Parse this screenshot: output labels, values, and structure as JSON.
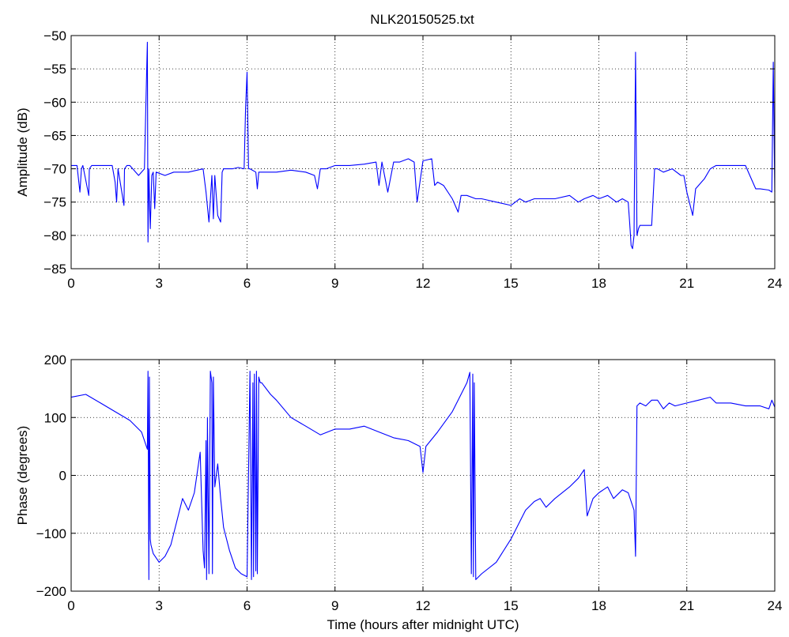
{
  "figure": {
    "title": "NLK20150525.txt"
  },
  "chart_data": [
    {
      "type": "line",
      "title": "NLK20150525.txt",
      "xlabel": "",
      "ylabel": "Amplitude (dB)",
      "xlim": [
        0,
        24
      ],
      "ylim": [
        -85,
        -50
      ],
      "xticks": [
        0,
        3,
        6,
        9,
        12,
        15,
        18,
        21,
        24
      ],
      "xtick_labels": [
        "0",
        "3",
        "6",
        "9",
        "12",
        "15",
        "18",
        "21",
        "24"
      ],
      "yticks": [
        -85,
        -80,
        -75,
        -70,
        -65,
        -60,
        -55,
        -50
      ],
      "ytick_labels": [
        "−85",
        "−80",
        "−75",
        "−70",
        "−65",
        "−60",
        "−55",
        "−50"
      ],
      "grid": true,
      "series": [
        {
          "color": "#0000ff",
          "x": [
            0,
            0.2,
            0.3,
            0.35,
            0.4,
            0.6,
            0.62,
            0.7,
            1.0,
            1.4,
            1.5,
            1.55,
            1.6,
            1.8,
            1.82,
            1.9,
            2.0,
            2.3,
            2.5,
            2.55,
            2.6,
            2.62,
            2.65,
            2.68,
            2.7,
            2.75,
            2.8,
            2.85,
            2.9,
            3.2,
            3.5,
            4.0,
            4.5,
            4.6,
            4.7,
            4.8,
            4.85,
            4.9,
            5.0,
            5.1,
            5.15,
            5.2,
            5.3,
            5.5,
            5.7,
            5.9,
            5.95,
            6.0,
            6.05,
            6.1,
            6.3,
            6.35,
            6.4,
            6.5,
            7.0,
            7.5,
            8.0,
            8.3,
            8.4,
            8.5,
            8.7,
            9.0,
            9.5,
            10.0,
            10.4,
            10.5,
            10.6,
            10.8,
            11.0,
            11.2,
            11.5,
            11.7,
            11.8,
            12.0,
            12.3,
            12.4,
            12.5,
            12.7,
            13.0,
            13.2,
            13.3,
            13.5,
            13.8,
            14.0,
            14.5,
            15.0,
            15.3,
            15.5,
            15.8,
            16.0,
            16.5,
            17.0,
            17.3,
            17.5,
            17.8,
            18.0,
            18.3,
            18.6,
            18.8,
            19.0,
            19.05,
            19.1,
            19.15,
            19.2,
            19.25,
            19.3,
            19.35,
            19.4,
            19.6,
            19.8,
            19.9,
            20.0,
            20.2,
            20.5,
            20.8,
            20.9,
            21.0,
            21.2,
            21.3,
            21.5,
            21.6,
            21.8,
            22.0,
            22.5,
            23.0,
            23.3,
            23.35,
            23.5,
            23.8,
            23.9,
            23.95,
            24.0
          ],
          "values": [
            -69.5,
            -69.5,
            -73.5,
            -70,
            -69.5,
            -74,
            -70,
            -69.5,
            -69.5,
            -69.5,
            -72,
            -75,
            -70,
            -75.5,
            -70,
            -69.5,
            -69.5,
            -71,
            -70,
            -60,
            -51,
            -81,
            -70,
            -76,
            -79,
            -71,
            -70.5,
            -76,
            -70.5,
            -71,
            -70.5,
            -70.5,
            -70,
            -73.5,
            -78,
            -71,
            -77.5,
            -71,
            -77,
            -78,
            -70.5,
            -70,
            -70,
            -70,
            -69.8,
            -70,
            -61,
            -55.5,
            -70,
            -70,
            -70.5,
            -73,
            -70.5,
            -70.5,
            -70.5,
            -70.2,
            -70.5,
            -71,
            -73,
            -70,
            -70,
            -69.5,
            -69.5,
            -69.3,
            -69,
            -72.5,
            -69,
            -73.5,
            -69,
            -69,
            -68.5,
            -69,
            -75,
            -68.8,
            -68.5,
            -72.5,
            -72,
            -72.5,
            -74.5,
            -76.5,
            -74,
            -74,
            -74.5,
            -74.5,
            -75,
            -75.5,
            -74.5,
            -75,
            -74.5,
            -74.5,
            -74.5,
            -74,
            -75,
            -74.5,
            -74,
            -74.5,
            -74,
            -75,
            -74.5,
            -75,
            -78,
            -81.5,
            -82,
            -80,
            -52.5,
            -80,
            -79,
            -78.5,
            -78.5,
            -78.5,
            -70,
            -70,
            -70.5,
            -70,
            -71,
            -71,
            -73.5,
            -77,
            -73,
            -72,
            -71.5,
            -70,
            -69.5,
            -69.5,
            -69.5,
            -72.5,
            -73,
            -73,
            -73.2,
            -73.5,
            -54,
            -73.5
          ]
        }
      ]
    },
    {
      "type": "line",
      "title": "",
      "xlabel": "Time (hours after midnight UTC)",
      "ylabel": "Phase (degrees)",
      "xlim": [
        0,
        24
      ],
      "ylim": [
        -200,
        200
      ],
      "xticks": [
        0,
        3,
        6,
        9,
        12,
        15,
        18,
        21,
        24
      ],
      "xtick_labels": [
        "0",
        "3",
        "6",
        "9",
        "12",
        "15",
        "18",
        "21",
        "24"
      ],
      "yticks": [
        -200,
        -100,
        0,
        100,
        200
      ],
      "ytick_labels": [
        "−200",
        "−100",
        "0",
        "100",
        "200"
      ],
      "grid": true,
      "series": [
        {
          "color": "#0000ff",
          "x": [
            0,
            0.5,
            1.0,
            1.5,
            2.0,
            2.4,
            2.6,
            2.62,
            2.65,
            2.67,
            2.7,
            2.72,
            2.8,
            3.0,
            3.2,
            3.4,
            3.6,
            3.8,
            4.0,
            4.2,
            4.4,
            4.5,
            4.55,
            4.6,
            4.62,
            4.65,
            4.7,
            4.75,
            4.8,
            4.82,
            4.85,
            4.9,
            5.0,
            5.1,
            5.2,
            5.4,
            5.6,
            5.8,
            6.0,
            6.1,
            6.15,
            6.2,
            6.22,
            6.25,
            6.3,
            6.32,
            6.35,
            6.4,
            6.45,
            6.5,
            6.8,
            7.0,
            7.5,
            8.0,
            8.5,
            9.0,
            9.5,
            10.0,
            10.5,
            11.0,
            11.5,
            11.9,
            12.0,
            12.1,
            12.5,
            13.0,
            13.5,
            13.6,
            13.65,
            13.7,
            13.72,
            13.75,
            13.8,
            14.0,
            14.5,
            15.0,
            15.5,
            15.8,
            16.0,
            16.2,
            16.5,
            17.0,
            17.3,
            17.5,
            17.6,
            17.8,
            18.0,
            18.3,
            18.5,
            18.8,
            19.0,
            19.2,
            19.25,
            19.3,
            19.4,
            19.6,
            19.8,
            20.0,
            20.2,
            20.4,
            20.6,
            21.0,
            21.4,
            21.8,
            22.0,
            22.5,
            23.0,
            23.5,
            23.8,
            23.9,
            24.0
          ],
          "values": [
            135,
            140,
            125,
            110,
            95,
            75,
            45,
            180,
            -180,
            170,
            -110,
            -120,
            -135,
            -150,
            -140,
            -120,
            -80,
            -40,
            -60,
            -30,
            40,
            -130,
            -160,
            60,
            -180,
            100,
            -170,
            180,
            160,
            -170,
            170,
            -20,
            20,
            -40,
            -90,
            -130,
            -160,
            -170,
            -175,
            180,
            -180,
            160,
            -175,
            175,
            -165,
            180,
            -170,
            170,
            160,
            160,
            140,
            130,
            100,
            85,
            70,
            80,
            80,
            85,
            75,
            65,
            60,
            50,
            5,
            50,
            75,
            110,
            160,
            178,
            -170,
            175,
            -175,
            160,
            -180,
            -170,
            -150,
            -110,
            -60,
            -45,
            -40,
            -55,
            -40,
            -20,
            -5,
            10,
            -70,
            -40,
            -30,
            -20,
            -40,
            -25,
            -30,
            -60,
            -140,
            120,
            125,
            120,
            130,
            130,
            115,
            125,
            120,
            125,
            130,
            135,
            125,
            125,
            120,
            120,
            115,
            130,
            118
          ]
        }
      ]
    }
  ]
}
